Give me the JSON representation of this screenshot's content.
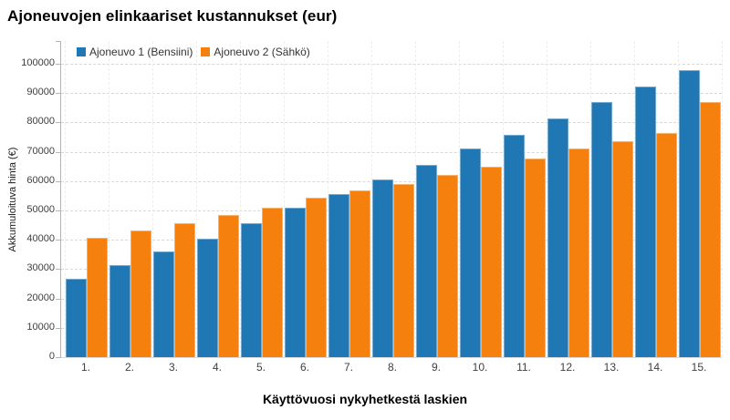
{
  "title": "Ajoneuvojen elinkaariset kustannukset (eur)",
  "legend": {
    "series1_label": "Ajoneuvo 1 (Bensiini)",
    "series2_label": "Ajoneuvo 2 (Sähkö)"
  },
  "colors": {
    "series1": "#1f77b4",
    "series2": "#f5800e",
    "gridline": "#d8d8d8",
    "axis": "#b3b3b3",
    "text": "#404040"
  },
  "chart_data": {
    "type": "bar",
    "title": "Ajoneuvojen elinkaariset kustannukset (eur)",
    "xlabel": "Käyttövuosi nykyhetkestä laskien",
    "ylabel": "Akkumuloituva hinta (€)",
    "categories": [
      "1.",
      "2.",
      "3.",
      "4.",
      "5.",
      "6.",
      "7.",
      "8.",
      "9.",
      "10.",
      "11.",
      "12.",
      "13.",
      "14.",
      "15."
    ],
    "series": [
      {
        "name": "Ajoneuvo 1 (Bensiini)",
        "color": "#1f77b4",
        "values": [
          26700,
          31300,
          35900,
          40500,
          45700,
          50900,
          55700,
          60700,
          65600,
          71000,
          75900,
          81500,
          86900,
          92200,
          97900
        ]
      },
      {
        "name": "Ajoneuvo 2 (Sähkö)",
        "color": "#f5800e",
        "values": [
          40600,
          43100,
          45700,
          48300,
          50800,
          54200,
          56700,
          59100,
          62000,
          64900,
          67700,
          71000,
          73600,
          76400,
          86900
        ]
      }
    ],
    "ylim": [
      0,
      100000
    ],
    "ytick_step": 10000,
    "yticks": [
      0,
      10000,
      20000,
      30000,
      40000,
      50000,
      60000,
      70000,
      80000,
      90000,
      100000
    ],
    "grid": true,
    "gridline_style": "dashed",
    "legend_position": "top-left"
  }
}
